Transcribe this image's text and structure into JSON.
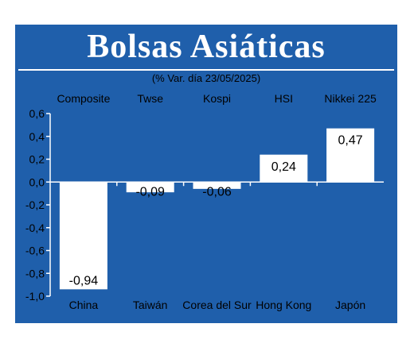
{
  "header": {
    "title": "Bolsas Asiáticas",
    "subtitle": "(% Var. día 23/05/2025)"
  },
  "colors": {
    "background": "#1f5fab",
    "bar": "#ffffff",
    "text": "#000000"
  },
  "chart_data": {
    "type": "bar",
    "title": "Bolsas Asiáticas",
    "subtitle": "(% Var. día 23/05/2025)",
    "categories": [
      "China",
      "Taiwán",
      "Corea del Sur",
      "Hong Kong",
      "Japón"
    ],
    "index_names": [
      "Composite",
      "Twse",
      "Kospi",
      "HSI",
      "Nikkei 225"
    ],
    "values": [
      -0.94,
      -0.09,
      -0.06,
      0.24,
      0.47
    ],
    "value_labels": [
      "-0,94",
      "-0,09",
      "-0,06",
      "0,24",
      "0,47"
    ],
    "ylim": [
      -1.0,
      0.6
    ],
    "yticks": [
      0.6,
      0.4,
      0.2,
      0.0,
      -0.2,
      -0.4,
      -0.6,
      -0.8,
      -1.0
    ],
    "ytick_labels": [
      "0,6",
      "0,4",
      "0,2",
      "0,0",
      "-0,2",
      "-0,4",
      "-0,6",
      "-0,8",
      "-1,0"
    ],
    "grid": false,
    "legend": "none"
  }
}
